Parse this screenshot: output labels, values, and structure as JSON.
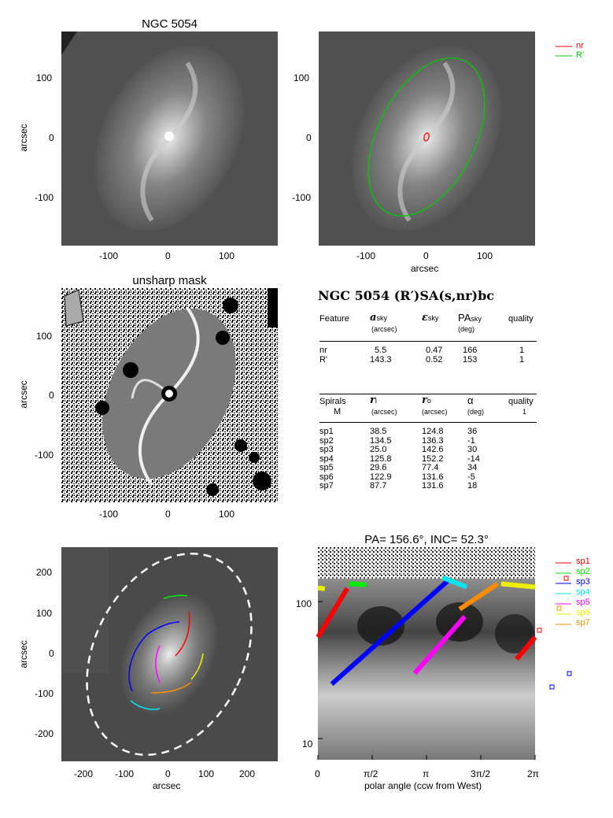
{
  "panels": {
    "image": {
      "title": "NGC 5054",
      "ylabel": "arcsec",
      "yticks": [
        "100",
        "0",
        "-100"
      ],
      "xticks": [
        "-100",
        "0",
        "100"
      ]
    },
    "fits": {
      "xlabel": "arcsec",
      "yticks": [
        "100",
        "0",
        "-100"
      ],
      "xticks": [
        "-100",
        "0",
        "100"
      ],
      "legend": [
        {
          "label": "nr",
          "color": "#ff0000"
        },
        {
          "label": "R'",
          "color": "#00cc00"
        }
      ]
    },
    "unsharp": {
      "title": "unsharp mask",
      "ylabel": "arcsec",
      "yticks": [
        "100",
        "0",
        "-100"
      ],
      "xticks": [
        "-100",
        "0",
        "100"
      ]
    },
    "spirals_image": {
      "ylabel": "arcsec",
      "xlabel": "arcsec",
      "yticks": [
        "200",
        "100",
        "0",
        "-100",
        "-200"
      ],
      "xticks": [
        "-200",
        "-100",
        "0",
        "100",
        "200"
      ]
    },
    "polar": {
      "title": "PA= 156.6°, INC=  52.3°",
      "xlabel": "polar angle (ccw from West)",
      "xticks": [
        "0",
        "π/2",
        "π",
        "3π/2",
        "2π"
      ],
      "yticks": [
        "100",
        "10"
      ],
      "legend": [
        {
          "label": "sp1",
          "color": "#ff0000"
        },
        {
          "label": "sp2",
          "color": "#00ee00"
        },
        {
          "label": "sp3",
          "color": "#0000ff"
        },
        {
          "label": "sp4",
          "color": "#00e5ee"
        },
        {
          "label": "sp5",
          "color": "#ff00ff"
        },
        {
          "label": "sp6",
          "color": "#eeee00"
        },
        {
          "label": "sp7",
          "color": "#ff8c00"
        }
      ]
    }
  },
  "table": {
    "title": "NGC 5054  (R′)SA(s,nr)bc",
    "rings_header": {
      "feature": "Feature",
      "a": "a",
      "a_sub": "sky",
      "a_unit": "(arcsec)",
      "eps": "ε",
      "eps_sub": "sky",
      "pa": "PA",
      "pa_sub": "sky",
      "pa_unit": "(deg)",
      "quality": "quality"
    },
    "rings": [
      {
        "feature": "nr",
        "a": "5.5",
        "eps": "0.47",
        "pa": "166",
        "quality": "1"
      },
      {
        "feature": "R'",
        "a": "143.3",
        "eps": "0.52",
        "pa": "153",
        "quality": "1"
      }
    ],
    "spirals_header": {
      "spirals": "Spirals",
      "m": "M",
      "ri": "r",
      "ri_sub": "i",
      "ri_unit": "(arcsec)",
      "ro": "r",
      "ro_sub": "o",
      "ro_unit": "(arcsec)",
      "alpha": "α",
      "alpha_unit": "(deg)",
      "quality": "quality",
      "quality_val": "1"
    },
    "spirals": [
      {
        "name": "sp1",
        "ri": "38.5",
        "ro": "124.8",
        "alpha": "36"
      },
      {
        "name": "sp2",
        "ri": "134.5",
        "ro": "136.3",
        "alpha": "-1"
      },
      {
        "name": "sp3",
        "ri": "25.0",
        "ro": "142.6",
        "alpha": "30"
      },
      {
        "name": "sp4",
        "ri": "125.8",
        "ro": "152.2",
        "alpha": "-14"
      },
      {
        "name": "sp5",
        "ri": "29.6",
        "ro": "77.4",
        "alpha": "34"
      },
      {
        "name": "sp6",
        "ri": "122.9",
        "ro": "131.6",
        "alpha": "-5"
      },
      {
        "name": "sp7",
        "ri": "87.7",
        "ro": "131.6",
        "alpha": "18"
      }
    ]
  },
  "chart_data": {
    "type": "line",
    "xlabel": "polar angle (ccw from West)",
    "ylabel": "",
    "xlim": [
      0,
      6.2832
    ],
    "ylim": [
      7,
      250
    ],
    "yscale": "log",
    "series": [
      {
        "name": "sp1",
        "x": [
          0.0,
          0.85
        ],
        "y": [
          55,
          125
        ]
      },
      {
        "name": "sp2",
        "x": [
          0.9,
          1.4
        ],
        "y": [
          135,
          133
        ]
      },
      {
        "name": "sp3",
        "x": [
          0.4,
          3.8
        ],
        "y": [
          25,
          145
        ]
      },
      {
        "name": "sp4",
        "x": [
          3.6,
          4.3
        ],
        "y": [
          150,
          128
        ]
      },
      {
        "name": "sp5",
        "x": [
          2.8,
          4.25
        ],
        "y": [
          30,
          78
        ]
      },
      {
        "name": "sp6",
        "x": [
          5.3,
          6.28
        ],
        "y": [
          135,
          128
        ]
      },
      {
        "name": "sp7",
        "x": [
          4.1,
          5.2
        ],
        "y": [
          88,
          135
        ]
      },
      {
        "name": "sp6",
        "x": [
          0.0,
          0.2
        ],
        "y": [
          126,
          124
        ]
      },
      {
        "name": "sp1",
        "x": [
          5.75,
          6.28
        ],
        "y": [
          38,
          55
        ]
      }
    ]
  }
}
